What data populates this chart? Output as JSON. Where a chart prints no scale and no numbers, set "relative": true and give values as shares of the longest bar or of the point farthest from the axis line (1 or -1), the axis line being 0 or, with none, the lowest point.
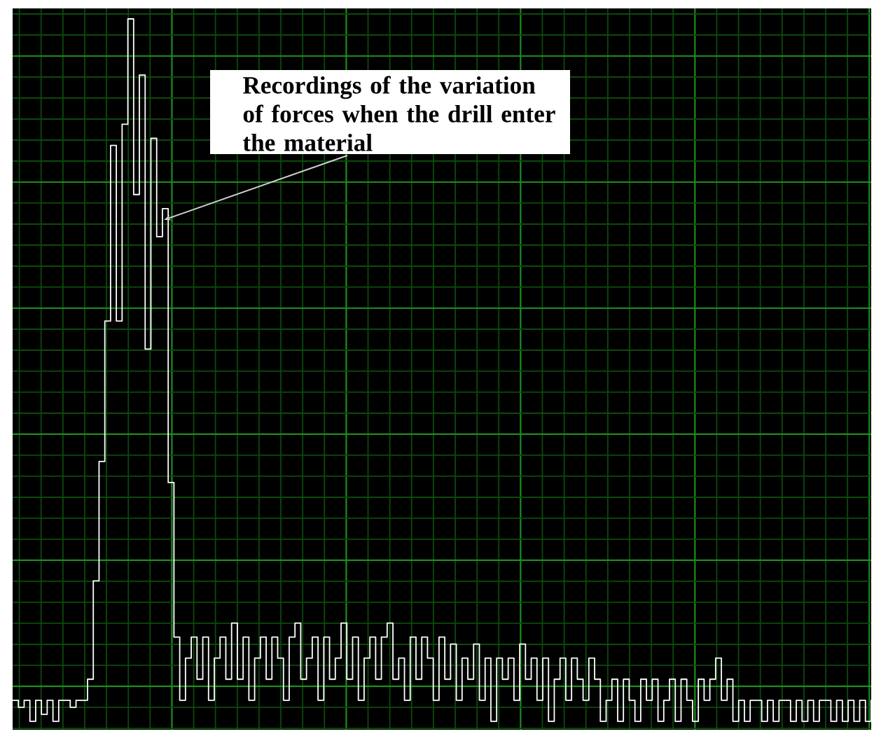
{
  "chart_data": {
    "type": "step",
    "relative": true,
    "grid": true,
    "color": "#ffffff",
    "categories": [
      null,
      null,
      null,
      null,
      null,
      null,
      null,
      null,
      null,
      null,
      null,
      null,
      null,
      null,
      null,
      null,
      null,
      null,
      null,
      null,
      null,
      null,
      null,
      null,
      null,
      null,
      null,
      null,
      null,
      null,
      null,
      null,
      null,
      null,
      null,
      null,
      null,
      null,
      null,
      null,
      null,
      null,
      null,
      null,
      null,
      null,
      null,
      null,
      null,
      null,
      null,
      null,
      null,
      null,
      null,
      null,
      null,
      null,
      null,
      null,
      null,
      null,
      null,
      null,
      null,
      null,
      null,
      null,
      null,
      null,
      null,
      null,
      null,
      null,
      null,
      null,
      null,
      null,
      null,
      null,
      null,
      null,
      null,
      null,
      null,
      null,
      null,
      null,
      null,
      null,
      null,
      null,
      null,
      null,
      null,
      null,
      null,
      null,
      null,
      null,
      null,
      null,
      null,
      null,
      null,
      null,
      null,
      null,
      null,
      null,
      null,
      null,
      null,
      null,
      null,
      null,
      null,
      null,
      null,
      null,
      null,
      null,
      null,
      null,
      null,
      null,
      null,
      null,
      null,
      null,
      null,
      null,
      null,
      null,
      null,
      null,
      null,
      null,
      null,
      null,
      null,
      null,
      null,
      null,
      null,
      null,
      null,
      null,
      null,
      null
    ],
    "values": [
      0.03,
      0.02,
      0.03,
      0.0,
      0.03,
      0.01,
      0.03,
      0.0,
      0.03,
      0.03,
      0.02,
      0.03,
      0.03,
      0.06,
      0.2,
      0.37,
      0.57,
      0.82,
      0.57,
      0.85,
      1.0,
      0.75,
      0.92,
      0.53,
      0.83,
      0.69,
      0.73,
      0.34,
      0.12,
      0.03,
      0.09,
      0.12,
      0.06,
      0.12,
      0.03,
      0.09,
      0.12,
      0.06,
      0.14,
      0.06,
      0.12,
      0.03,
      0.09,
      0.12,
      0.06,
      0.12,
      0.09,
      0.03,
      0.12,
      0.14,
      0.06,
      0.09,
      0.12,
      0.03,
      0.12,
      0.06,
      0.09,
      0.14,
      0.06,
      0.12,
      0.03,
      0.09,
      0.12,
      0.06,
      0.12,
      0.14,
      0.06,
      0.09,
      0.03,
      0.12,
      0.06,
      0.12,
      0.09,
      0.03,
      0.12,
      0.06,
      0.11,
      0.03,
      0.09,
      0.06,
      0.11,
      0.03,
      0.09,
      0.0,
      0.09,
      0.06,
      0.09,
      0.03,
      0.11,
      0.06,
      0.09,
      0.03,
      0.09,
      0.0,
      0.06,
      0.09,
      0.03,
      0.09,
      0.06,
      0.03,
      0.09,
      0.06,
      0.0,
      0.03,
      0.06,
      0.0,
      0.06,
      0.03,
      0.0,
      0.06,
      0.03,
      0.06,
      0.0,
      0.03,
      0.06,
      0.0,
      0.06,
      0.03,
      0.0,
      0.06,
      0.03,
      0.06,
      0.09,
      0.03,
      0.06,
      0.0,
      0.03,
      0.0,
      0.03,
      0.03,
      0.0,
      0.03,
      0.0,
      0.03,
      0.03,
      0.0,
      0.03,
      0.0,
      0.03,
      0.0,
      0.03,
      0.03,
      0.0,
      0.03,
      0.0,
      0.03,
      0.0,
      0.03,
      0.0,
      0.03
    ],
    "annotations": [
      "Recordings of the variation of forces when the drill enter the material"
    ]
  }
}
